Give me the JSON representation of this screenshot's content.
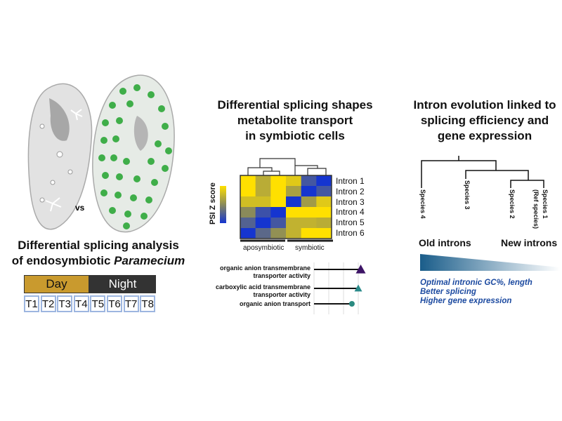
{
  "left": {
    "vs_label": "vs",
    "title_line1": "Differential splicing analysis",
    "title_line2_prefix": "of endosymbiotic ",
    "title_line2_italic": "Paramecium",
    "day_label": "Day",
    "night_label": "Night",
    "day_color": "#c99a2e",
    "night_color": "#333333",
    "timepoints": [
      "T1",
      "T2",
      "T3",
      "T4",
      "T5",
      "T6",
      "T7",
      "T8"
    ]
  },
  "middle": {
    "title_lines": [
      "Differential splicing shapes",
      "metabolite transport",
      "in symbiotic cells"
    ],
    "colorbar_label": "PSI Z score",
    "heatmap": {
      "rows": [
        "Intron 1",
        "Intron 2",
        "Intron 3",
        "Intron 4",
        "Intron 5",
        "Intron 6"
      ],
      "groups": [
        "aposymbiotic",
        "symbiotic"
      ],
      "values": [
        [
          1.5,
          0.6,
          1.5,
          1.1,
          -0.9,
          -1.5
        ],
        [
          1.5,
          0.6,
          1.5,
          0.4,
          -1.5,
          -0.9
        ],
        [
          0.9,
          0.9,
          1.5,
          -1.5,
          0.3,
          1.1
        ],
        [
          0.0,
          -1.0,
          -1.5,
          1.5,
          1.5,
          1.5
        ],
        [
          -0.7,
          -1.5,
          -0.9,
          0.7,
          0.7,
          0.6
        ],
        [
          -1.5,
          -0.6,
          0.1,
          0.7,
          1.5,
          1.5
        ]
      ],
      "low_color": "#1535d0",
      "high_color": "#ffe000"
    },
    "enrichment": [
      {
        "term_lines": [
          "organic anion transmembrane",
          "transporter activity"
        ],
        "value": 0.95,
        "marker": "triangle",
        "color": "#3d1466"
      },
      {
        "term_lines": [
          "carboxylic acid transmembrane",
          "transporter activity"
        ],
        "value": 0.9,
        "marker": "triangle",
        "color": "#2a8a8a"
      },
      {
        "term_lines": [
          "organic anion transport"
        ],
        "value": 0.77,
        "marker": "circle",
        "color": "#2a8a80"
      }
    ]
  },
  "right": {
    "title_lines": [
      "Intron evolution linked to",
      "splicing efficiency and",
      "gene expression"
    ],
    "species": [
      "Species 4",
      "Species 3",
      "Species 2",
      "Species 1",
      "(Ref species)"
    ],
    "old_label": "Old introns",
    "new_label": "New introns",
    "gradient_color": "#1a5d8a",
    "notes": [
      "Optimal intronic GC%, length",
      "Better splicing",
      "Higher gene expression"
    ]
  }
}
